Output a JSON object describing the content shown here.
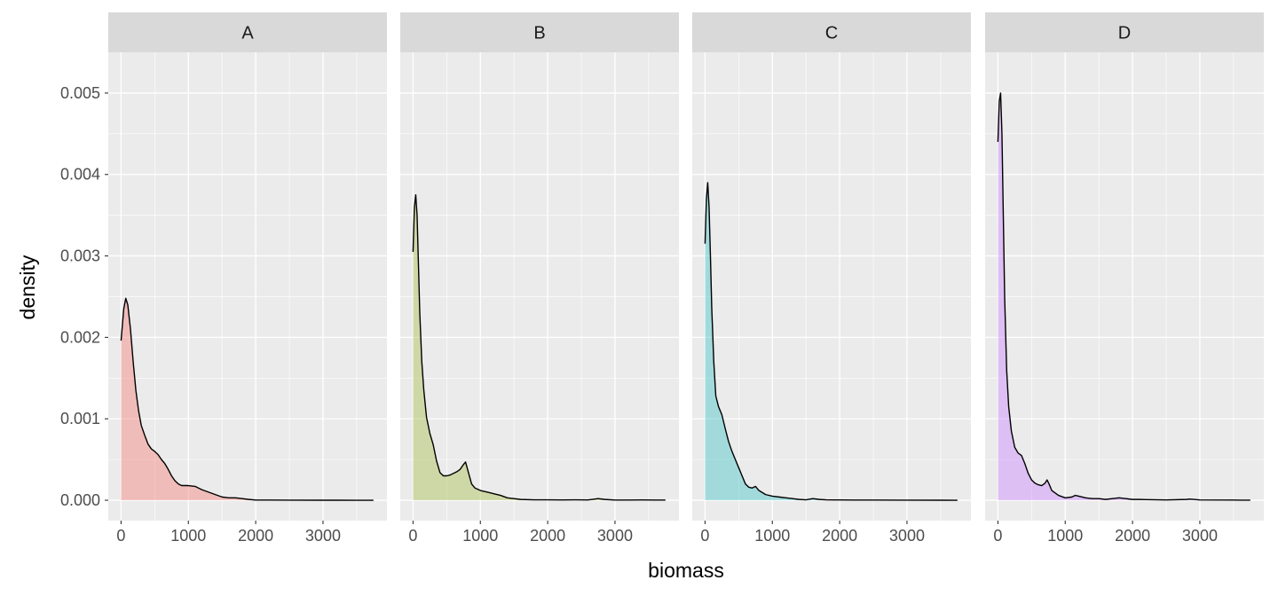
{
  "chart_data": {
    "type": "area",
    "xlabel": "biomass",
    "ylabel": "density",
    "xlim": [
      -190,
      3950
    ],
    "ylim": [
      -0.00025,
      0.0055
    ],
    "x_ticks": [
      0,
      1000,
      2000,
      3000
    ],
    "x_tick_labels": [
      "0",
      "1000",
      "2000",
      "3000"
    ],
    "y_ticks": [
      0,
      0.001,
      0.002,
      0.003,
      0.004,
      0.005
    ],
    "y_tick_labels": [
      "0.000",
      "0.001",
      "0.002",
      "0.003",
      "0.004",
      "0.005"
    ],
    "grid": true,
    "legend": "none",
    "panels": [
      {
        "label": "A",
        "color": "#f8766d",
        "x": [
          0,
          40,
          70,
          100,
          140,
          180,
          220,
          260,
          300,
          350,
          400,
          450,
          500,
          550,
          600,
          650,
          700,
          750,
          800,
          850,
          900,
          1000,
          1100,
          1200,
          1300,
          1400,
          1500,
          1600,
          1700,
          1800,
          1900,
          2000,
          2200,
          2500,
          3000,
          3500,
          3750
        ],
        "y": [
          0.00196,
          0.00235,
          0.00248,
          0.0024,
          0.0021,
          0.0017,
          0.00135,
          0.0011,
          0.00092,
          0.0008,
          0.00069,
          0.00063,
          0.0006,
          0.00056,
          0.0005,
          0.00045,
          0.00038,
          0.0003,
          0.00024,
          0.0002,
          0.00018,
          0.00018,
          0.00017,
          0.00013,
          0.0001,
          7e-05,
          4e-05,
          3e-05,
          3e-05,
          2e-05,
          1e-05,
          3e-06,
          2e-06,
          1e-06,
          5e-07,
          3e-07,
          2e-07
        ]
      },
      {
        "label": "B",
        "color": "#a3b93f",
        "x": [
          0,
          20,
          40,
          60,
          80,
          100,
          130,
          160,
          200,
          250,
          300,
          350,
          400,
          450,
          500,
          550,
          600,
          650,
          700,
          750,
          780,
          820,
          870,
          920,
          1000,
          1100,
          1200,
          1300,
          1400,
          1500,
          1600,
          1800,
          2000,
          2200,
          2400,
          2600,
          2750,
          2850,
          3000,
          3200,
          3400,
          3600,
          3750
        ],
        "y": [
          0.00305,
          0.0036,
          0.00375,
          0.0035,
          0.0029,
          0.0023,
          0.0017,
          0.00135,
          0.00102,
          0.00082,
          0.00068,
          0.00048,
          0.00034,
          0.0003,
          0.0003,
          0.00031,
          0.00033,
          0.00035,
          0.00038,
          0.00044,
          0.00047,
          0.00035,
          0.0002,
          0.00015,
          0.00012,
          0.0001,
          8e-05,
          6e-05,
          3e-05,
          2e-05,
          1e-05,
          5e-06,
          5e-06,
          4e-06,
          5e-06,
          4e-06,
          2e-05,
          1e-05,
          3e-06,
          2e-06,
          4e-06,
          3e-06,
          2e-06
        ]
      },
      {
        "label": "C",
        "color": "#35c1c5",
        "x": [
          0,
          20,
          40,
          60,
          80,
          100,
          130,
          160,
          200,
          250,
          300,
          350,
          400,
          450,
          500,
          550,
          600,
          650,
          700,
          750,
          800,
          900,
          1000,
          1100,
          1200,
          1300,
          1400,
          1500,
          1600,
          1700,
          1800,
          1900,
          2000,
          2200,
          2500,
          3000,
          3500,
          3750
        ],
        "y": [
          0.00315,
          0.0037,
          0.0039,
          0.0036,
          0.003,
          0.00235,
          0.0017,
          0.00128,
          0.00115,
          0.00105,
          0.00088,
          0.00072,
          0.0006,
          0.0005,
          0.0004,
          0.0003,
          0.0002,
          0.00016,
          0.00015,
          0.00017,
          0.00012,
          7e-05,
          5e-05,
          4e-05,
          3e-05,
          2e-05,
          1e-05,
          5e-06,
          2e-05,
          1e-05,
          5e-06,
          4e-06,
          4e-06,
          3e-06,
          2e-06,
          1e-06,
          5e-07,
          3e-07
        ]
      },
      {
        "label": "D",
        "color": "#c77cff",
        "x": [
          0,
          20,
          40,
          60,
          80,
          100,
          130,
          160,
          200,
          250,
          300,
          350,
          400,
          450,
          500,
          550,
          600,
          650,
          700,
          730,
          760,
          800,
          900,
          1000,
          1100,
          1150,
          1200,
          1300,
          1400,
          1500,
          1600,
          1700,
          1800,
          1900,
          2000,
          2100,
          2200,
          2500,
          2800,
          2850,
          3000,
          3500,
          3750
        ],
        "y": [
          0.0044,
          0.0049,
          0.005,
          0.0045,
          0.0035,
          0.0025,
          0.0016,
          0.00115,
          0.00085,
          0.00065,
          0.00058,
          0.00055,
          0.00045,
          0.00033,
          0.00025,
          0.00021,
          0.00019,
          0.00018,
          0.00021,
          0.00025,
          0.0002,
          0.00012,
          6e-05,
          3e-05,
          4e-05,
          6e-05,
          5e-05,
          3e-05,
          2e-05,
          2e-05,
          1e-05,
          2e-05,
          3e-05,
          2e-05,
          1e-05,
          1e-05,
          8e-06,
          4e-06,
          1e-05,
          1.5e-05,
          4e-06,
          2e-06,
          1e-06
        ]
      }
    ]
  }
}
